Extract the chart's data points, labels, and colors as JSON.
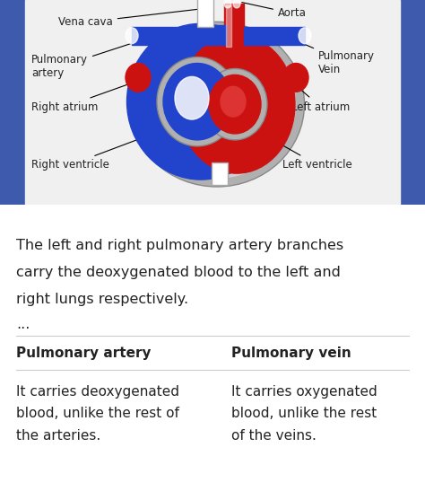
{
  "bg_color": "#ffffff",
  "blue_sidebar": "#3d5aad",
  "heart_panel_bg": "#e8e8e8",
  "title_line1": "The left and right pulmonary artery branches",
  "title_line2": "carry the deoxygenated blood to the left and",
  "title_line3": "right lungs respectively.",
  "ellipsis": "...",
  "col1_header": "Pulmonary artery",
  "col2_header": "Pulmonary vein",
  "col1_body_line1": "It carries deoxygenated",
  "col1_body_line2": "blood, unlike the rest of",
  "col1_body_line3": "the arteries.",
  "col2_body_line1": "It carries oxygenated",
  "col2_body_line2": "blood, unlike the rest",
  "col2_body_line3": "of the veins.",
  "heart_labels": {
    "aorta": "Aorta",
    "vena_cava": "Vena cava",
    "pulmonary_artery": "Pulmonary\nartery",
    "right_atrium": "Right atrium",
    "right_ventricle": "Right ventricle",
    "pulmonary_vein": "Pulmonary\nVein",
    "left_atrium": "Left atrium",
    "left_ventricle": "Left ventricle"
  },
  "colors": {
    "red": "#cc1111",
    "blue": "#2244cc",
    "blue_dark": "#1133aa",
    "gray": "#b0b0b0",
    "gray_light": "#d0d0d0",
    "white": "#ffffff",
    "dark": "#222222",
    "line_color": "#333333"
  }
}
